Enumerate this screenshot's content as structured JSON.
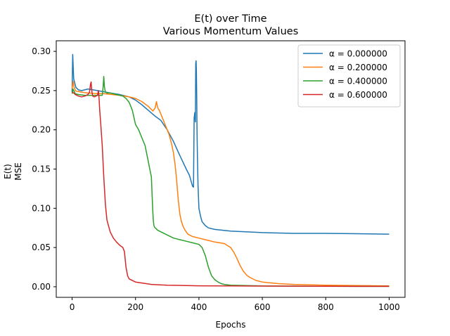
{
  "chart_data": {
    "type": "line",
    "title": "E(t) over Time",
    "subtitle": "Various Momentum Values",
    "xlabel": "Epochs",
    "ylabel_line1": "E(t)",
    "ylabel_line2": "MSE",
    "xlim": [
      -50,
      1050
    ],
    "ylim": [
      -0.0135,
      0.3135
    ],
    "xticks": [
      0,
      200,
      400,
      600,
      800,
      1000
    ],
    "xtick_labels": [
      "0",
      "200",
      "400",
      "600",
      "800",
      "1000"
    ],
    "yticks": [
      0.0,
      0.05,
      0.1,
      0.15,
      0.2,
      0.25,
      0.3
    ],
    "ytick_labels": [
      "0.00",
      "0.05",
      "0.10",
      "0.15",
      "0.20",
      "0.25",
      "0.30"
    ],
    "grid": false,
    "legend_position": "top-right",
    "series": [
      {
        "name": "α = 0.000000",
        "color": "#1f77b4",
        "x": [
          0,
          2,
          3,
          5,
          8,
          12,
          20,
          30,
          50,
          80,
          120,
          150,
          180,
          200,
          220,
          240,
          260,
          280,
          300,
          320,
          340,
          360,
          370,
          380,
          383,
          385,
          387,
          389,
          390,
          391,
          392,
          393,
          394,
          395,
          397,
          400,
          405,
          410,
          420,
          430,
          450,
          500,
          600,
          700,
          800,
          1000
        ],
        "y": [
          0.248,
          0.296,
          0.285,
          0.265,
          0.26,
          0.254,
          0.251,
          0.25,
          0.252,
          0.25,
          0.247,
          0.245,
          0.242,
          0.238,
          0.232,
          0.225,
          0.218,
          0.212,
          0.2,
          0.185,
          0.167,
          0.15,
          0.142,
          0.128,
          0.127,
          0.215,
          0.222,
          0.21,
          0.285,
          0.288,
          0.275,
          0.24,
          0.2,
          0.17,
          0.13,
          0.1,
          0.09,
          0.083,
          0.078,
          0.075,
          0.073,
          0.071,
          0.069,
          0.068,
          0.068,
          0.067
        ]
      },
      {
        "name": "α = 0.200000",
        "color": "#ff7f0e",
        "x": [
          0,
          3,
          6,
          10,
          15,
          20,
          30,
          50,
          80,
          100,
          150,
          180,
          200,
          220,
          240,
          255,
          262,
          266,
          270,
          275,
          280,
          285,
          290,
          295,
          300,
          305,
          310,
          315,
          320,
          325,
          330,
          335,
          340,
          345,
          350,
          355,
          360,
          365,
          370,
          380,
          400,
          420,
          450,
          480,
          500,
          510,
          520,
          530,
          540,
          550,
          560,
          580,
          600,
          650,
          700,
          800,
          900,
          1000
        ],
        "y": [
          0.252,
          0.262,
          0.255,
          0.25,
          0.249,
          0.249,
          0.248,
          0.247,
          0.246,
          0.246,
          0.244,
          0.242,
          0.24,
          0.236,
          0.23,
          0.224,
          0.228,
          0.236,
          0.228,
          0.225,
          0.22,
          0.215,
          0.21,
          0.205,
          0.2,
          0.195,
          0.188,
          0.18,
          0.17,
          0.155,
          0.135,
          0.11,
          0.092,
          0.083,
          0.077,
          0.073,
          0.07,
          0.067,
          0.066,
          0.064,
          0.062,
          0.06,
          0.057,
          0.055,
          0.05,
          0.044,
          0.036,
          0.027,
          0.02,
          0.015,
          0.012,
          0.008,
          0.006,
          0.004,
          0.003,
          0.002,
          0.0015,
          0.001
        ]
      },
      {
        "name": "α = 0.400000",
        "color": "#2ca02c",
        "x": [
          0,
          3,
          5,
          10,
          20,
          40,
          60,
          80,
          95,
          98,
          100,
          102,
          105,
          110,
          120,
          140,
          160,
          170,
          180,
          190,
          200,
          210,
          220,
          230,
          240,
          245,
          250,
          252,
          254,
          256,
          258,
          260,
          262,
          265,
          270,
          280,
          300,
          320,
          340,
          360,
          380,
          400,
          410,
          420,
          430,
          440,
          450,
          460,
          470,
          480,
          500,
          550,
          600,
          700,
          800,
          1000
        ],
        "y": [
          0.246,
          0.252,
          0.25,
          0.246,
          0.245,
          0.244,
          0.244,
          0.244,
          0.244,
          0.255,
          0.268,
          0.255,
          0.248,
          0.247,
          0.247,
          0.245,
          0.243,
          0.24,
          0.235,
          0.225,
          0.207,
          0.2,
          0.19,
          0.18,
          0.16,
          0.15,
          0.14,
          0.12,
          0.1,
          0.085,
          0.078,
          0.076,
          0.075,
          0.074,
          0.072,
          0.07,
          0.066,
          0.062,
          0.06,
          0.058,
          0.056,
          0.054,
          0.05,
          0.04,
          0.025,
          0.014,
          0.009,
          0.006,
          0.004,
          0.003,
          0.002,
          0.0015,
          0.001,
          0.0008,
          0.0006,
          0.0005
        ]
      },
      {
        "name": "α = 0.600000",
        "color": "#d62728",
        "x": [
          0,
          5,
          10,
          20,
          30,
          40,
          50,
          55,
          58,
          60,
          62,
          65,
          70,
          75,
          80,
          83,
          85,
          87,
          90,
          95,
          100,
          105,
          110,
          120,
          130,
          140,
          150,
          160,
          165,
          170,
          175,
          180,
          200,
          250,
          300,
          400,
          500,
          600,
          800,
          1000
        ],
        "y": [
          0.248,
          0.247,
          0.245,
          0.243,
          0.242,
          0.243,
          0.245,
          0.248,
          0.258,
          0.261,
          0.25,
          0.243,
          0.242,
          0.243,
          0.244,
          0.25,
          0.24,
          0.225,
          0.21,
          0.18,
          0.14,
          0.105,
          0.085,
          0.07,
          0.062,
          0.057,
          0.053,
          0.05,
          0.045,
          0.025,
          0.014,
          0.01,
          0.006,
          0.003,
          0.002,
          0.0012,
          0.001,
          0.0008,
          0.0006,
          0.0005
        ]
      }
    ]
  }
}
